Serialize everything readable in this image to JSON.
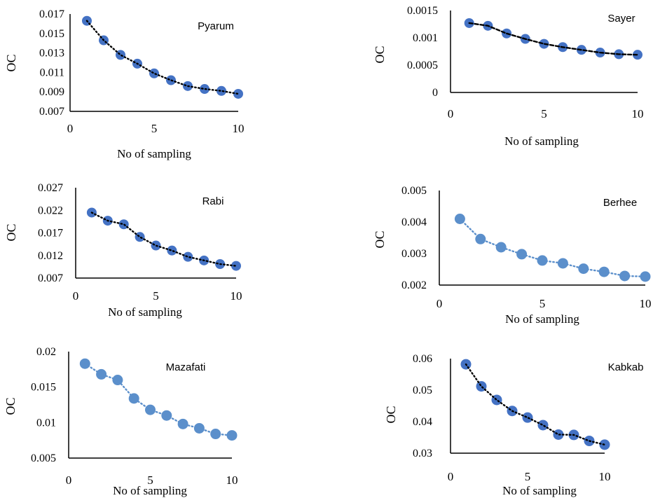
{
  "chart_data": [
    {
      "type": "scatter",
      "title": "Pyarum",
      "xlabel": "No of sampling",
      "ylabel": "OC",
      "xlim": [
        0,
        10
      ],
      "xticks": [
        "0",
        "5",
        "10"
      ],
      "ylim": [
        0.007,
        0.017
      ],
      "yticks": [
        "0.007",
        "0.009",
        "0.011",
        "0.013",
        "0.015",
        "0.017"
      ],
      "grid": false,
      "marker_color": "#4472C4",
      "trendline": {
        "style": "dotted",
        "color": "#000000"
      },
      "series": [
        {
          "x": [
            1,
            2,
            3,
            4,
            5,
            6,
            7,
            8,
            9,
            10
          ],
          "values": [
            0.0163,
            0.0143,
            0.0128,
            0.0119,
            0.0109,
            0.0102,
            0.0096,
            0.0093,
            0.0091,
            0.0088
          ]
        }
      ]
    },
    {
      "type": "scatter",
      "title": "Sayer",
      "xlabel": "No of sampling",
      "ylabel": "OC",
      "xlim": [
        0,
        10
      ],
      "xticks": [
        "0",
        "5",
        "10"
      ],
      "ylim": [
        0,
        0.0015
      ],
      "yticks": [
        "0",
        "0.0005",
        "0.001",
        "0.0015"
      ],
      "grid": false,
      "marker_color": "#4472C4",
      "trendline": {
        "style": "dashed",
        "color": "#000000"
      },
      "series": [
        {
          "x": [
            1,
            2,
            3,
            4,
            5,
            6,
            7,
            8,
            9,
            10
          ],
          "values": [
            0.00127,
            0.00122,
            0.00108,
            0.00098,
            0.00089,
            0.00083,
            0.00078,
            0.00073,
            0.0007,
            0.00069
          ]
        }
      ]
    },
    {
      "type": "scatter",
      "title": "Rabi",
      "xlabel": "No of sampling",
      "ylabel": "OC",
      "xlim": [
        0,
        10
      ],
      "xticks": [
        "0",
        "5",
        "10"
      ],
      "ylim": [
        0.007,
        0.027
      ],
      "yticks": [
        "0.007",
        "0.012",
        "0.017",
        "0.022",
        "0.027"
      ],
      "grid": false,
      "marker_color": "#4472C4",
      "trendline": {
        "style": "dotted",
        "color": "#000000"
      },
      "series": [
        {
          "x": [
            1,
            2,
            3,
            4,
            5,
            6,
            7,
            8,
            9,
            10
          ],
          "values": [
            0.0215,
            0.0197,
            0.0189,
            0.0161,
            0.0142,
            0.0131,
            0.0117,
            0.0109,
            0.0101,
            0.0097
          ]
        }
      ]
    },
    {
      "type": "scatter",
      "title": "Berhee",
      "xlabel": "No of sampling",
      "ylabel": "OC",
      "xlim": [
        0,
        10
      ],
      "xticks": [
        "0",
        "5",
        "10"
      ],
      "ylim": [
        0.002,
        0.005
      ],
      "yticks": [
        "0.002",
        "0.003",
        "0.004",
        "0.005"
      ],
      "grid": false,
      "marker_color": "#5B8FCB",
      "trendline": {
        "style": "dotted",
        "color": "#5B8FCB"
      },
      "series": [
        {
          "x": [
            1,
            2,
            3,
            4,
            5,
            6,
            7,
            8,
            9,
            10
          ],
          "values": [
            0.0041,
            0.00346,
            0.0032,
            0.00298,
            0.00278,
            0.00269,
            0.00252,
            0.00242,
            0.00229,
            0.00227
          ]
        }
      ]
    },
    {
      "type": "scatter",
      "title": "Mazafati",
      "xlabel": "No of sampling",
      "ylabel": "OC",
      "xlim": [
        0,
        10
      ],
      "xticks": [
        "0",
        "5",
        "10"
      ],
      "ylim": [
        0.005,
        0.02
      ],
      "yticks": [
        "0.005",
        "0.01",
        "0.015",
        "0.02"
      ],
      "grid": false,
      "marker_color": "#5B8FCB",
      "trendline": {
        "style": "dotted",
        "color": "#5B8FCB"
      },
      "series": [
        {
          "x": [
            1,
            2,
            3,
            4,
            5,
            6,
            7,
            8,
            9,
            10
          ],
          "values": [
            0.0183,
            0.0168,
            0.016,
            0.0134,
            0.0118,
            0.011,
            0.0098,
            0.0092,
            0.0084,
            0.0082
          ]
        }
      ]
    },
    {
      "type": "scatter",
      "title": "Kabkab",
      "xlabel": "No of sampling",
      "ylabel": "OC",
      "xlim": [
        0,
        10
      ],
      "xticks": [
        "0",
        "5",
        "10"
      ],
      "ylim": [
        0.03,
        0.06
      ],
      "yticks": [
        "0.03",
        "0.04",
        "0.05",
        "0.06"
      ],
      "grid": false,
      "marker_color": "#4472C4",
      "trendline": {
        "style": "dotted",
        "color": "#000000"
      },
      "series": [
        {
          "x": [
            1,
            2,
            3,
            4,
            5,
            6,
            7,
            8,
            9,
            10
          ],
          "values": [
            0.0582,
            0.0512,
            0.0469,
            0.0434,
            0.0413,
            0.0389,
            0.0359,
            0.0358,
            0.0339,
            0.0327
          ]
        }
      ]
    }
  ]
}
